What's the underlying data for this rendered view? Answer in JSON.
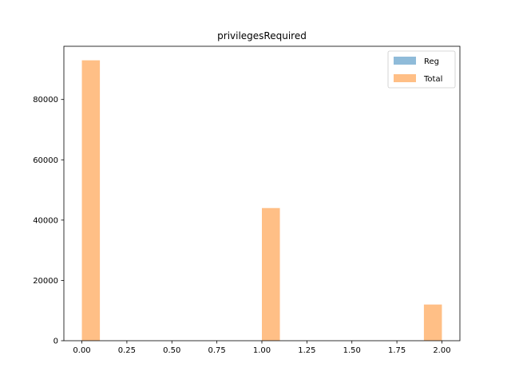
{
  "chart_data": {
    "type": "bar",
    "title": "privilegesRequired",
    "xlabel": "",
    "ylabel": "",
    "xlim": [
      -0.1,
      2.1
    ],
    "ylim": [
      0,
      97650
    ],
    "bin_width": 0.1,
    "x_ticks": [
      "0.00",
      "0.25",
      "0.50",
      "0.75",
      "1.00",
      "1.25",
      "1.50",
      "1.75",
      "2.00"
    ],
    "x_tick_values": [
      0,
      0.25,
      0.5,
      0.75,
      1.0,
      1.25,
      1.5,
      1.75,
      2.0
    ],
    "y_ticks": [
      "0",
      "20000",
      "40000",
      "60000",
      "80000"
    ],
    "y_tick_values": [
      0,
      20000,
      40000,
      60000,
      80000
    ],
    "legend_position": "top-right",
    "grid": false,
    "series": [
      {
        "name": "Reg",
        "color": "#8fbbd9",
        "bins": [
          {
            "x0": 0.0,
            "value": 0
          },
          {
            "x0": 1.0,
            "value": 0
          },
          {
            "x0": 1.9,
            "value": 0
          }
        ]
      },
      {
        "name": "Total",
        "color": "#ffbf86",
        "bins": [
          {
            "x0": 0.0,
            "value": 93000
          },
          {
            "x0": 1.0,
            "value": 44000
          },
          {
            "x0": 1.9,
            "value": 12000
          }
        ]
      }
    ]
  }
}
